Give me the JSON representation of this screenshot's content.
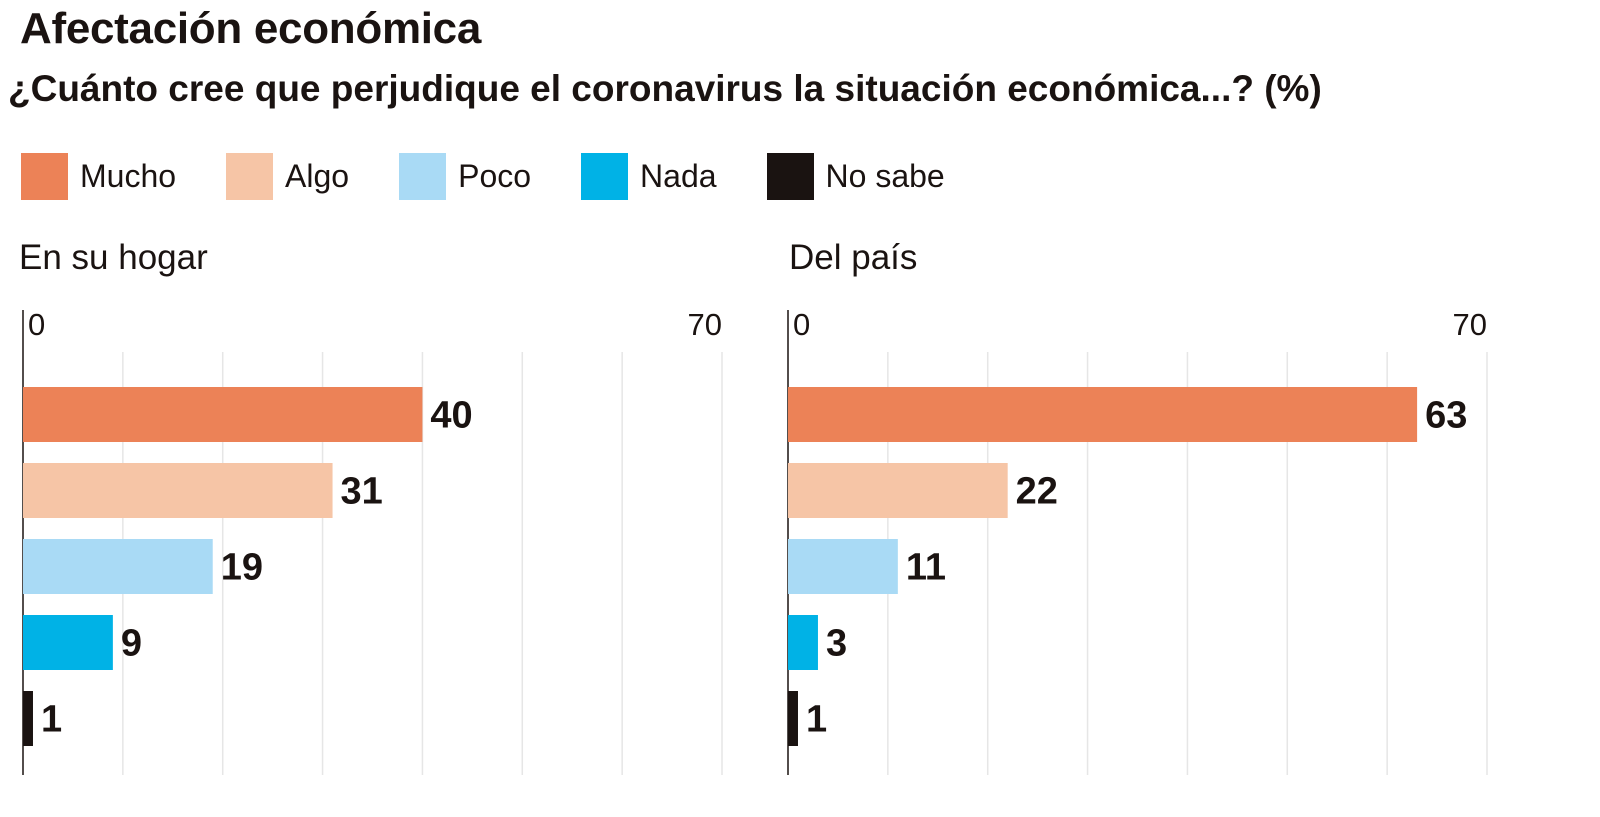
{
  "title": "Afectación económica",
  "subtitle": "¿Cuánto cree que perjudique el coronavirus la situación económica...? (%)",
  "legend": [
    {
      "label": "Mucho",
      "color": "#ec8257"
    },
    {
      "label": "Algo",
      "color": "#f6c5a6"
    },
    {
      "label": "Poco",
      "color": "#a9daf5"
    },
    {
      "label": "Nada",
      "color": "#00b2e6"
    },
    {
      "label": "No sabe",
      "color": "#1a1311"
    }
  ],
  "chart_data": [
    {
      "type": "bar",
      "orientation": "horizontal",
      "title": "En su hogar",
      "categories": [
        "Mucho",
        "Algo",
        "Poco",
        "Nada",
        "No sabe"
      ],
      "values": [
        40,
        31,
        19,
        9,
        1
      ],
      "xlim": [
        0,
        70
      ],
      "ticks": [
        "0",
        "70"
      ],
      "grid": true
    },
    {
      "type": "bar",
      "orientation": "horizontal",
      "title": "Del país",
      "categories": [
        "Mucho",
        "Algo",
        "Poco",
        "Nada",
        "No sabe"
      ],
      "values": [
        63,
        22,
        11,
        3,
        1
      ],
      "xlim": [
        0,
        70
      ],
      "ticks": [
        "0",
        "70"
      ],
      "grid": true
    }
  ]
}
